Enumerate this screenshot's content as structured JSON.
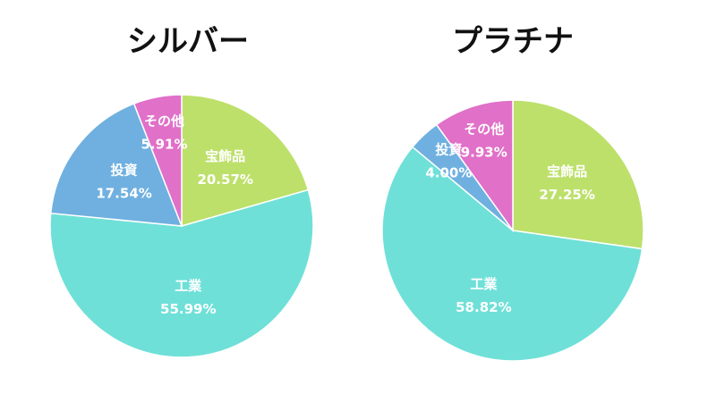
{
  "chart_data": [
    {
      "type": "pie",
      "title": "シルバー",
      "categories": [
        "宝飾品",
        "工業",
        "投資",
        "その他"
      ],
      "values": [
        20.57,
        55.99,
        17.54,
        5.91
      ],
      "value_labels": [
        "20.57%",
        "55.99%",
        "17.54%",
        "5.91%"
      ],
      "colors": [
        "#bde06b",
        "#6fe0d8",
        "#6fb0e0",
        "#e070c8"
      ]
    },
    {
      "type": "pie",
      "title": "プラチナ",
      "categories": [
        "宝飾品",
        "工業",
        "投資",
        "その他"
      ],
      "values": [
        27.25,
        58.82,
        4.0,
        9.93
      ],
      "value_labels": [
        "27.25%",
        "58.82%",
        "4.00%",
        "9.93%"
      ],
      "colors": [
        "#bde06b",
        "#6fe0d8",
        "#6fb0e0",
        "#e070c8"
      ]
    }
  ]
}
